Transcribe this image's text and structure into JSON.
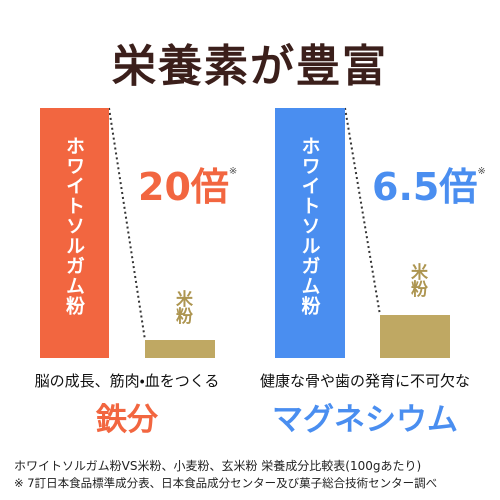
{
  "title": "栄養素が豊富",
  "panels": [
    {
      "bar_label": "ホワイトソルガム粉",
      "ratio": "20倍",
      "note_mark": "※",
      "compare_label": "米粉",
      "caption": "脳の成長、筋肉・血をつくる",
      "nutrient": "鉄分"
    },
    {
      "bar_label": "ホワイトソルガム粉",
      "ratio": "6.5倍",
      "note_mark": "※",
      "compare_label": "米粉",
      "caption": "健康な骨や歯の発育に不可欠な",
      "nutrient": "マグネシウム"
    }
  ],
  "footer": {
    "lines": [
      "ホワイトソルガム粉VS米粉、小麦粉、玄米粉 栄養成分比較表(100gあたり)",
      "※ 7訂日本食品標準成分表、日本食品成分センター及び菓子総合技術センター調べ"
    ]
  }
}
